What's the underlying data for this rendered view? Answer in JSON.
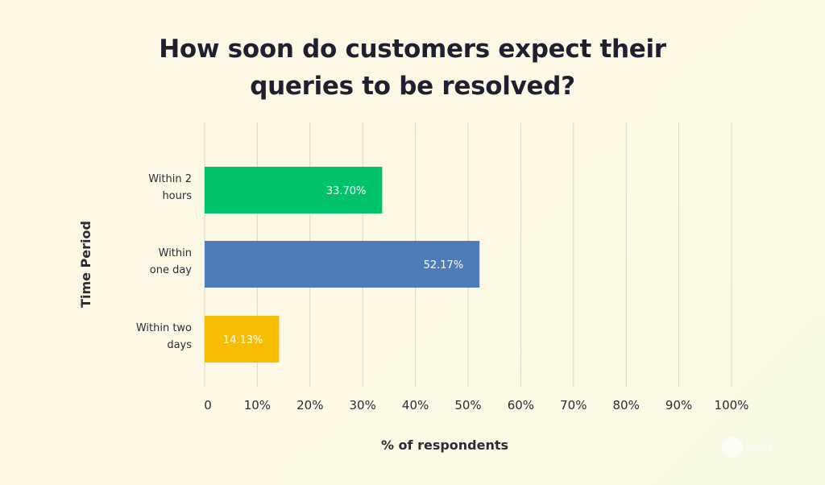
{
  "chart_data": {
    "type": "bar",
    "orientation": "horizontal",
    "title_lines": [
      "How soon do customers expect their",
      "queries to be resolved?"
    ],
    "xlabel": "% of respondents",
    "ylabel": "Time Period",
    "categories": [
      [
        "Within 2",
        "hours"
      ],
      [
        "Within",
        "one day"
      ],
      [
        "Within two",
        "days"
      ]
    ],
    "values": [
      33.7,
      52.17,
      14.13
    ],
    "value_labels": [
      "33.70%",
      "52.17%",
      "14.13%"
    ],
    "colors": [
      "#00c26b",
      "#4f7bb8",
      "#f7bd05"
    ],
    "xlim": [
      0,
      100
    ],
    "xticks": [
      0,
      10,
      20,
      30,
      40,
      50,
      60,
      70,
      80,
      90,
      100
    ],
    "xtick_labels": [
      "0",
      "10%",
      "20%",
      "30%",
      "40%",
      "50%",
      "60%",
      "70%",
      "80%",
      "90%",
      "100%"
    ],
    "grid": true
  },
  "watermark": {
    "text": "hiver",
    "icon": "hiver-logo-icon"
  }
}
